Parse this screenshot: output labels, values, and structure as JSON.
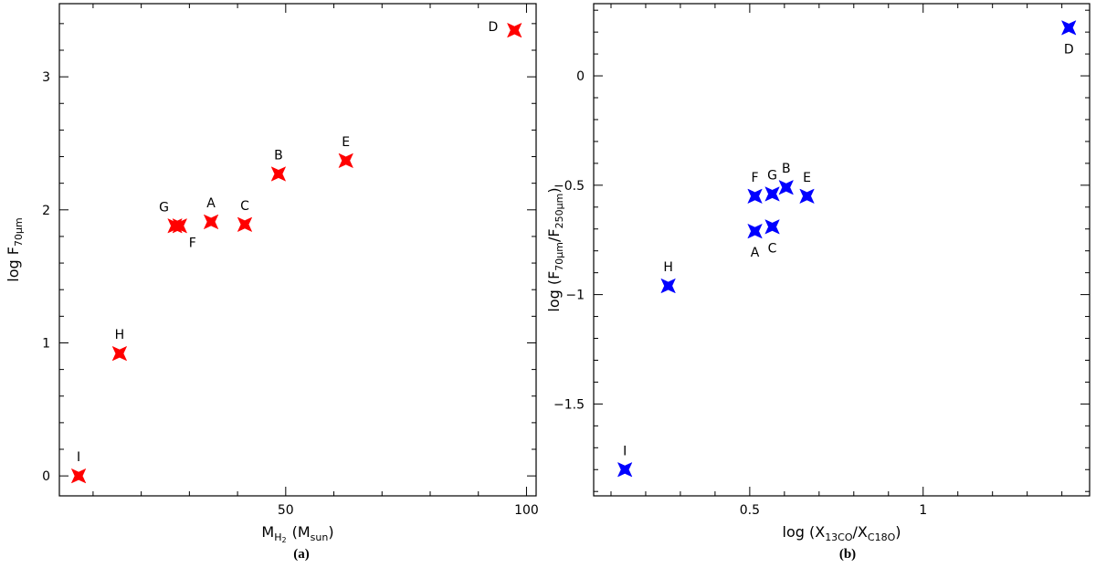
{
  "chart_data": [
    {
      "type": "scatter",
      "panel": "(a)",
      "marker": "four-point-star",
      "color": "#ff0000",
      "xlabel": {
        "main": "M",
        "sub": "H",
        "sub2": "2",
        "unit": "(M",
        "unit_sub": "sun",
        "close": ")"
      },
      "ylabel": {
        "main": "log F",
        "sub": "70μm"
      },
      "xlim": [
        3,
        102
      ],
      "ylim": [
        -0.15,
        3.55
      ],
      "xticks_major": [
        50,
        100
      ],
      "xticks_minor_step": 10,
      "yticks_major": [
        0,
        1,
        2,
        3
      ],
      "yticks_minor_step": 0.2,
      "xtick_labels": [
        "50",
        "100"
      ],
      "ytick_labels": [
        "0",
        "1",
        "2",
        "3"
      ],
      "points": [
        {
          "label": "I",
          "x": 7.0,
          "y": 0.0,
          "label_pos": "above"
        },
        {
          "label": "H",
          "x": 15.5,
          "y": 0.92,
          "label_pos": "above"
        },
        {
          "label": "G",
          "x": 27.0,
          "y": 1.88,
          "label_pos": "upper-left"
        },
        {
          "label": "F",
          "x": 28.0,
          "y": 1.88,
          "label_pos": "lower-right"
        },
        {
          "label": "A",
          "x": 34.5,
          "y": 1.91,
          "label_pos": "above"
        },
        {
          "label": "C",
          "x": 41.5,
          "y": 1.89,
          "label_pos": "above"
        },
        {
          "label": "B",
          "x": 48.5,
          "y": 2.27,
          "label_pos": "above"
        },
        {
          "label": "E",
          "x": 62.5,
          "y": 2.37,
          "label_pos": "above"
        },
        {
          "label": "D",
          "x": 97.5,
          "y": 3.35,
          "label_pos": "left"
        }
      ]
    },
    {
      "type": "scatter",
      "panel": "(b)",
      "marker": "four-point-star",
      "color": "#0000ff",
      "xlabel": {
        "main": "log (X",
        "sub": "13CO",
        "mid": "/X",
        "sub2": "C18O",
        "close": ")"
      },
      "ylabel": {
        "main": "log (F",
        "sub": "70μm",
        "mid": "/F",
        "sub2": "250μm",
        "close": ")"
      },
      "xlim": [
        0.05,
        1.48
      ],
      "ylim": [
        -1.92,
        0.33
      ],
      "xticks_major": [
        0.5,
        1
      ],
      "xticks_minor_step": 0.1,
      "yticks_major": [
        -1.5,
        -1,
        -0.5,
        0
      ],
      "yticks_minor_step": 0.1,
      "xtick_labels": [
        "0.5",
        "1"
      ],
      "ytick_labels": [
        "−1.5",
        "−1",
        "−0.5",
        "0"
      ],
      "points": [
        {
          "label": "I",
          "x": 0.14,
          "y": -1.8,
          "label_pos": "above"
        },
        {
          "label": "H",
          "x": 0.265,
          "y": -0.96,
          "label_pos": "above"
        },
        {
          "label": "F",
          "x": 0.515,
          "y": -0.55,
          "label_pos": "above"
        },
        {
          "label": "A",
          "x": 0.515,
          "y": -0.71,
          "label_pos": "below"
        },
        {
          "label": "G",
          "x": 0.565,
          "y": -0.54,
          "label_pos": "above"
        },
        {
          "label": "C",
          "x": 0.565,
          "y": -0.69,
          "label_pos": "below"
        },
        {
          "label": "B",
          "x": 0.605,
          "y": -0.51,
          "label_pos": "above"
        },
        {
          "label": "E",
          "x": 0.665,
          "y": -0.55,
          "label_pos": "above"
        },
        {
          "label": "D",
          "x": 1.42,
          "y": 0.22,
          "label_pos": "below"
        }
      ]
    }
  ],
  "captions": [
    "(a)",
    "(b)"
  ]
}
